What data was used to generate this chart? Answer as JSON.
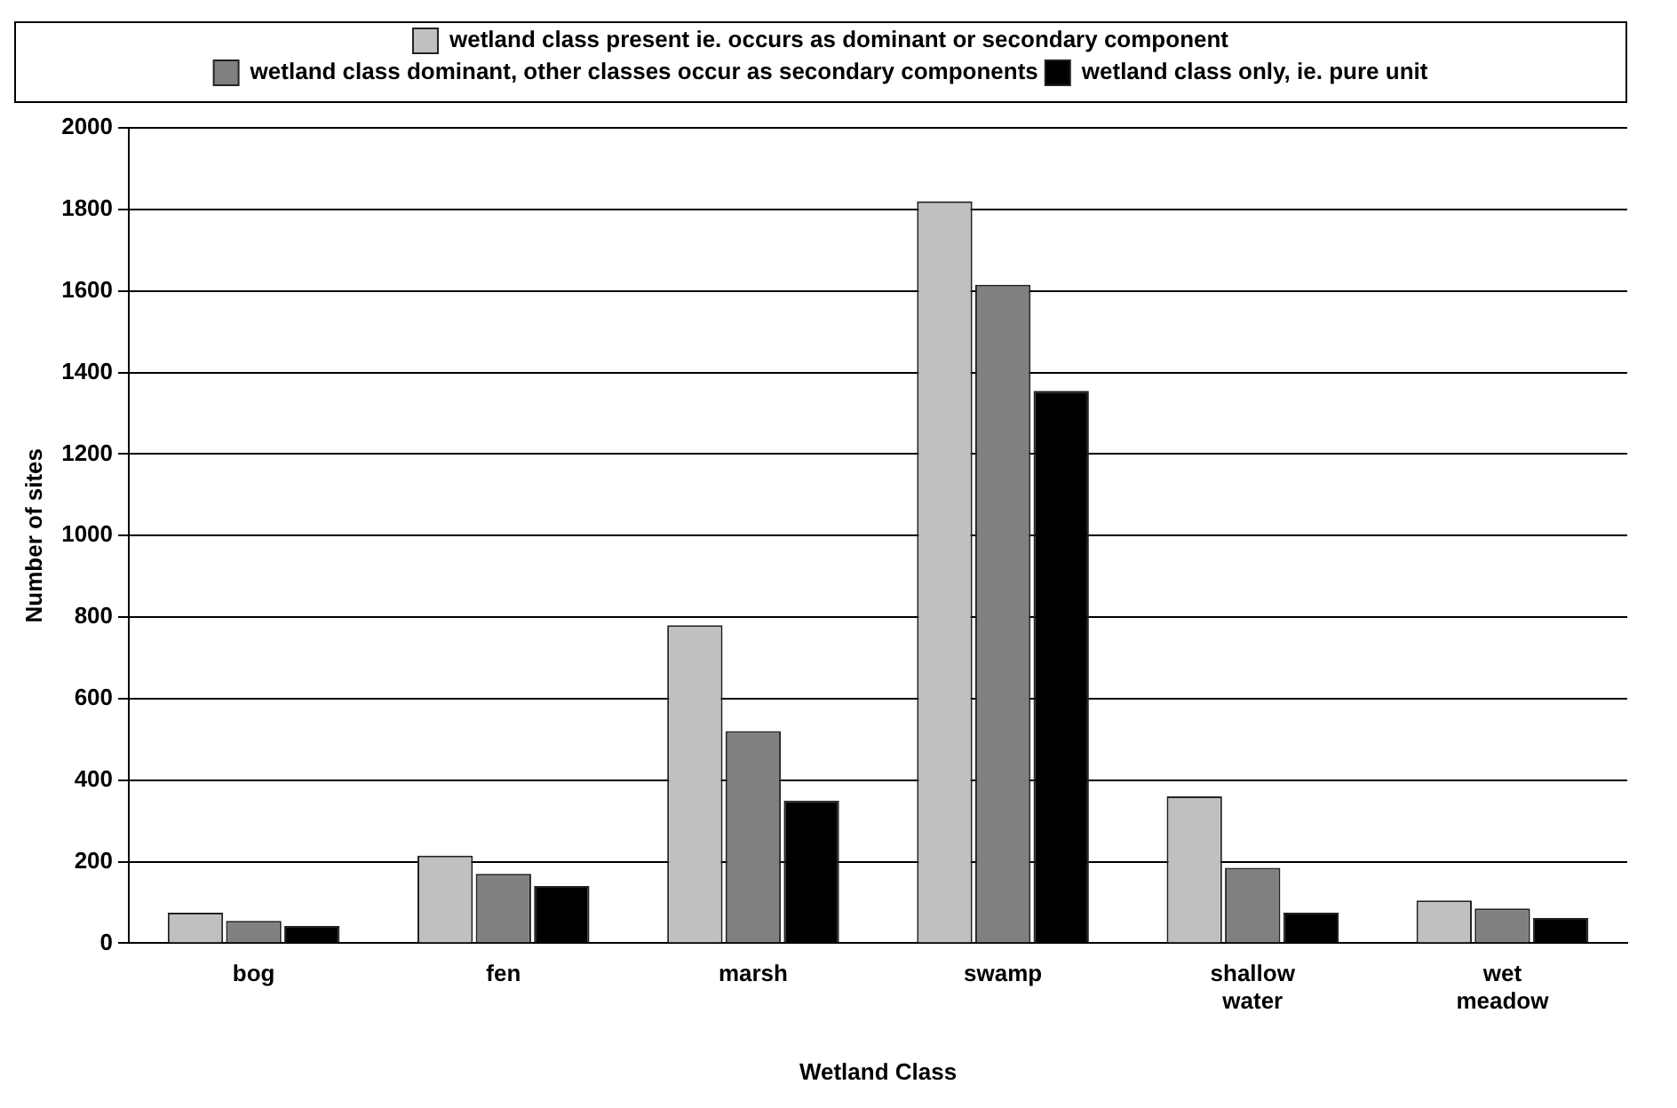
{
  "chart_data": {
    "type": "bar",
    "xlabel": "Wetland Class",
    "ylabel": "Number of sites",
    "categories": [
      "bog",
      "fen",
      "marsh",
      "swamp",
      "shallow water",
      "wet meadow"
    ],
    "series": [
      {
        "name": "wetland class present ie. occurs as dominant or secondary component",
        "color": "#c0c0c0",
        "values": [
          75,
          215,
          780,
          1820,
          360,
          105
        ]
      },
      {
        "name": "wetland class dominant, other classes occur as secondary components",
        "color": "#808080",
        "values": [
          55,
          170,
          520,
          1615,
          185,
          85
        ]
      },
      {
        "name": "wetland class only, ie. pure unit",
        "color": "#000000",
        "values": [
          42,
          140,
          350,
          1355,
          75,
          62
        ]
      }
    ],
    "ylim": [
      0,
      2000
    ],
    "yticks": [
      0,
      200,
      400,
      600,
      800,
      1000,
      1200,
      1400,
      1600,
      1800,
      2000
    ],
    "grid": "y",
    "legend": "top"
  }
}
